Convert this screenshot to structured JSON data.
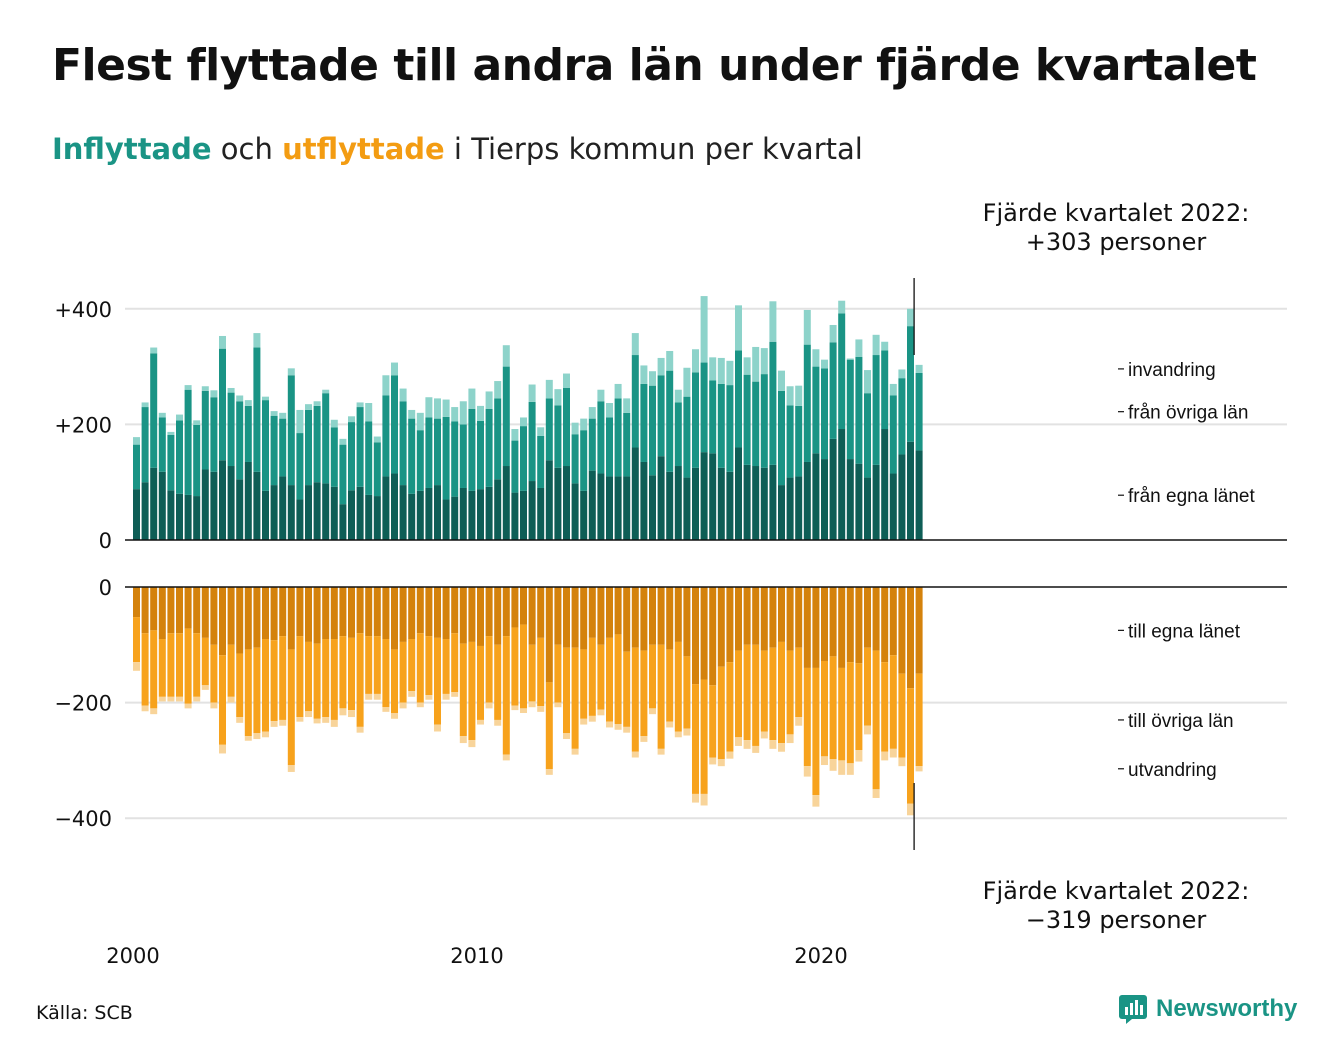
{
  "title": "Flest flyttade till andra län under fjärde kvartalet",
  "subtitle": {
    "in_word": "Inflyttade",
    "and_word": " och ",
    "out_word": "utflyttade",
    "rest": " i Tierps kommun per kvartal"
  },
  "annotations": {
    "top_line1": "Fjärde kvartalet 2022:",
    "top_line2": "+303 personer",
    "bottom_line1": "Fjärde kvartalet 2022:",
    "bottom_line2": "−319 personer"
  },
  "source": "Källa: SCB",
  "brand": "Newsworthy",
  "colors": {
    "in_own": "#0e5e56",
    "in_other": "#1a9485",
    "in_immig": "#8dd3ca",
    "out_own": "#d4820c",
    "out_other": "#f7a21c",
    "out_emig": "#f8d49a",
    "title_in": "#1a9485",
    "title_out": "#f39c12"
  },
  "chart_data": [
    {
      "type": "bar",
      "stacked": true,
      "panel": "inflyttade",
      "x_start": "2000 Q1",
      "x_end": "2022 Q4",
      "xticks": [
        "2000",
        "2010",
        "2020"
      ],
      "yticks": [
        "+400",
        "+200",
        "0"
      ],
      "ylim": [
        0,
        470
      ],
      "legend_labels": [
        "invandring",
        "från övriga län",
        "från egna länet"
      ],
      "series": [
        {
          "name": "från egna länet",
          "values": [
            88,
            100,
            125,
            118,
            86,
            80,
            78,
            76,
            122,
            118,
            138,
            128,
            105,
            135,
            118,
            85,
            95,
            110,
            95,
            70,
            95,
            100,
            98,
            92,
            62,
            86,
            92,
            78,
            76,
            110,
            115,
            95,
            80,
            85,
            90,
            95,
            70,
            75,
            90,
            85,
            88,
            92,
            105,
            128,
            82,
            85,
            102,
            90,
            138,
            125,
            128,
            98,
            85,
            120,
            115,
            110,
            110,
            110,
            160,
            135,
            112,
            145,
            118,
            128,
            108,
            125,
            152,
            150,
            125,
            118,
            160,
            130,
            128,
            125,
            130,
            95,
            108,
            110,
            135,
            150,
            140,
            175,
            192,
            140,
            132,
            108,
            130,
            192,
            115,
            148,
            170,
            155
          ]
        },
        {
          "name": "från övriga län",
          "values": [
            77,
            130,
            198,
            94,
            96,
            127,
            182,
            123,
            136,
            129,
            193,
            127,
            135,
            97,
            215,
            157,
            120,
            100,
            190,
            115,
            130,
            132,
            156,
            103,
            103,
            118,
            138,
            127,
            93,
            140,
            170,
            145,
            130,
            105,
            122,
            115,
            143,
            130,
            110,
            142,
            118,
            135,
            140,
            172,
            90,
            112,
            137,
            90,
            107,
            108,
            135,
            85,
            105,
            90,
            125,
            102,
            135,
            110,
            160,
            135,
            155,
            140,
            175,
            110,
            140,
            165,
            155,
            126,
            145,
            150,
            168,
            156,
            146,
            162,
            213,
            163,
            125,
            122,
            203,
            150,
            157,
            167,
            200,
            172,
            185,
            146,
            190,
            136,
            135,
            132,
            200,
            134
          ]
        },
        {
          "name": "invandring",
          "values": [
            13,
            8,
            10,
            8,
            5,
            10,
            8,
            8,
            8,
            12,
            22,
            8,
            10,
            10,
            25,
            6,
            8,
            10,
            12,
            40,
            10,
            8,
            6,
            13,
            10,
            10,
            8,
            32,
            10,
            35,
            22,
            22,
            15,
            30,
            35,
            35,
            30,
            25,
            40,
            35,
            26,
            30,
            30,
            37,
            20,
            15,
            30,
            15,
            32,
            28,
            25,
            20,
            20,
            20,
            20,
            25,
            25,
            25,
            38,
            32,
            25,
            30,
            34,
            22,
            50,
            40,
            115,
            40,
            45,
            42,
            78,
            30,
            60,
            45,
            70,
            35,
            33,
            35,
            60,
            30,
            15,
            30,
            22,
            2,
            30,
            40,
            35,
            15,
            20,
            15,
            30,
            14
          ]
        }
      ]
    },
    {
      "type": "bar",
      "stacked": true,
      "panel": "utflyttade",
      "x_start": "2000 Q1",
      "x_end": "2022 Q4",
      "xticks": [
        "2000",
        "2010",
        "2020"
      ],
      "yticks": [
        "0",
        "−200",
        "−400"
      ],
      "ylim": [
        -460,
        0
      ],
      "legend_labels": [
        "till egna länet",
        "till övriga län",
        "utvandring"
      ],
      "series": [
        {
          "name": "till egna länet",
          "values": [
            -52,
            -80,
            -75,
            -90,
            -80,
            -80,
            -72,
            -80,
            -88,
            -100,
            -118,
            -100,
            -115,
            -108,
            -105,
            -90,
            -92,
            -85,
            -108,
            -85,
            -95,
            -98,
            -90,
            -90,
            -85,
            -88,
            -80,
            -85,
            -85,
            -90,
            -108,
            -95,
            -90,
            -80,
            -85,
            -88,
            -90,
            -80,
            -98,
            -95,
            -102,
            -85,
            -100,
            -85,
            -70,
            -65,
            -100,
            -88,
            -165,
            -100,
            -105,
            -105,
            -108,
            -88,
            -100,
            -88,
            -82,
            -112,
            -105,
            -110,
            -100,
            -100,
            -108,
            -95,
            -120,
            -168,
            -160,
            -170,
            -138,
            -130,
            -110,
            -100,
            -100,
            -110,
            -105,
            -95,
            -110,
            -105,
            -140,
            -140,
            -128,
            -120,
            -140,
            -130,
            -132,
            -105,
            -110,
            -130,
            -118,
            -150,
            -175,
            -150
          ]
        },
        {
          "name": "till övriga län",
          "values": [
            -78,
            -125,
            -135,
            -100,
            -110,
            -110,
            -130,
            -110,
            -82,
            -100,
            -155,
            -90,
            -110,
            -150,
            -148,
            -160,
            -140,
            -145,
            -200,
            -140,
            -120,
            -130,
            -135,
            -140,
            -125,
            -125,
            -162,
            -100,
            -100,
            -118,
            -110,
            -105,
            -90,
            -120,
            -102,
            -150,
            -95,
            -102,
            -160,
            -170,
            -128,
            -115,
            -130,
            -205,
            -135,
            -145,
            -98,
            -118,
            -150,
            -100,
            -148,
            -175,
            -120,
            -135,
            -112,
            -145,
            -155,
            -130,
            -180,
            -148,
            -110,
            -180,
            -125,
            -155,
            -125,
            -190,
            -198,
            -125,
            -160,
            -155,
            -150,
            -165,
            -175,
            -140,
            -160,
            -175,
            -145,
            -120,
            -170,
            -220,
            -165,
            -178,
            -160,
            -175,
            -150,
            -135,
            -240,
            -155,
            -162,
            -145,
            -200,
            -160
          ]
        },
        {
          "name": "utvandring",
          "values": [
            -15,
            -10,
            -10,
            -8,
            -8,
            -8,
            -8,
            -8,
            -8,
            -10,
            -15,
            -10,
            -10,
            -8,
            -10,
            -10,
            -10,
            -10,
            -12,
            -8,
            -10,
            -8,
            -10,
            -12,
            -12,
            -12,
            -10,
            -10,
            -10,
            -8,
            -10,
            -10,
            -10,
            -8,
            -8,
            -12,
            -10,
            -8,
            -12,
            -12,
            -8,
            -10,
            -10,
            -10,
            -8,
            -8,
            -10,
            -10,
            -10,
            -8,
            -10,
            -10,
            -10,
            -10,
            -10,
            -10,
            -10,
            -10,
            -10,
            -10,
            -10,
            -10,
            -10,
            -10,
            -12,
            -15,
            -20,
            -12,
            -12,
            -12,
            -15,
            -15,
            -12,
            -12,
            -15,
            -15,
            -15,
            -15,
            -18,
            -20,
            -15,
            -20,
            -25,
            -20,
            -20,
            -15,
            -15,
            -15,
            -15,
            -15,
            -20,
            -9
          ]
        }
      ]
    }
  ]
}
